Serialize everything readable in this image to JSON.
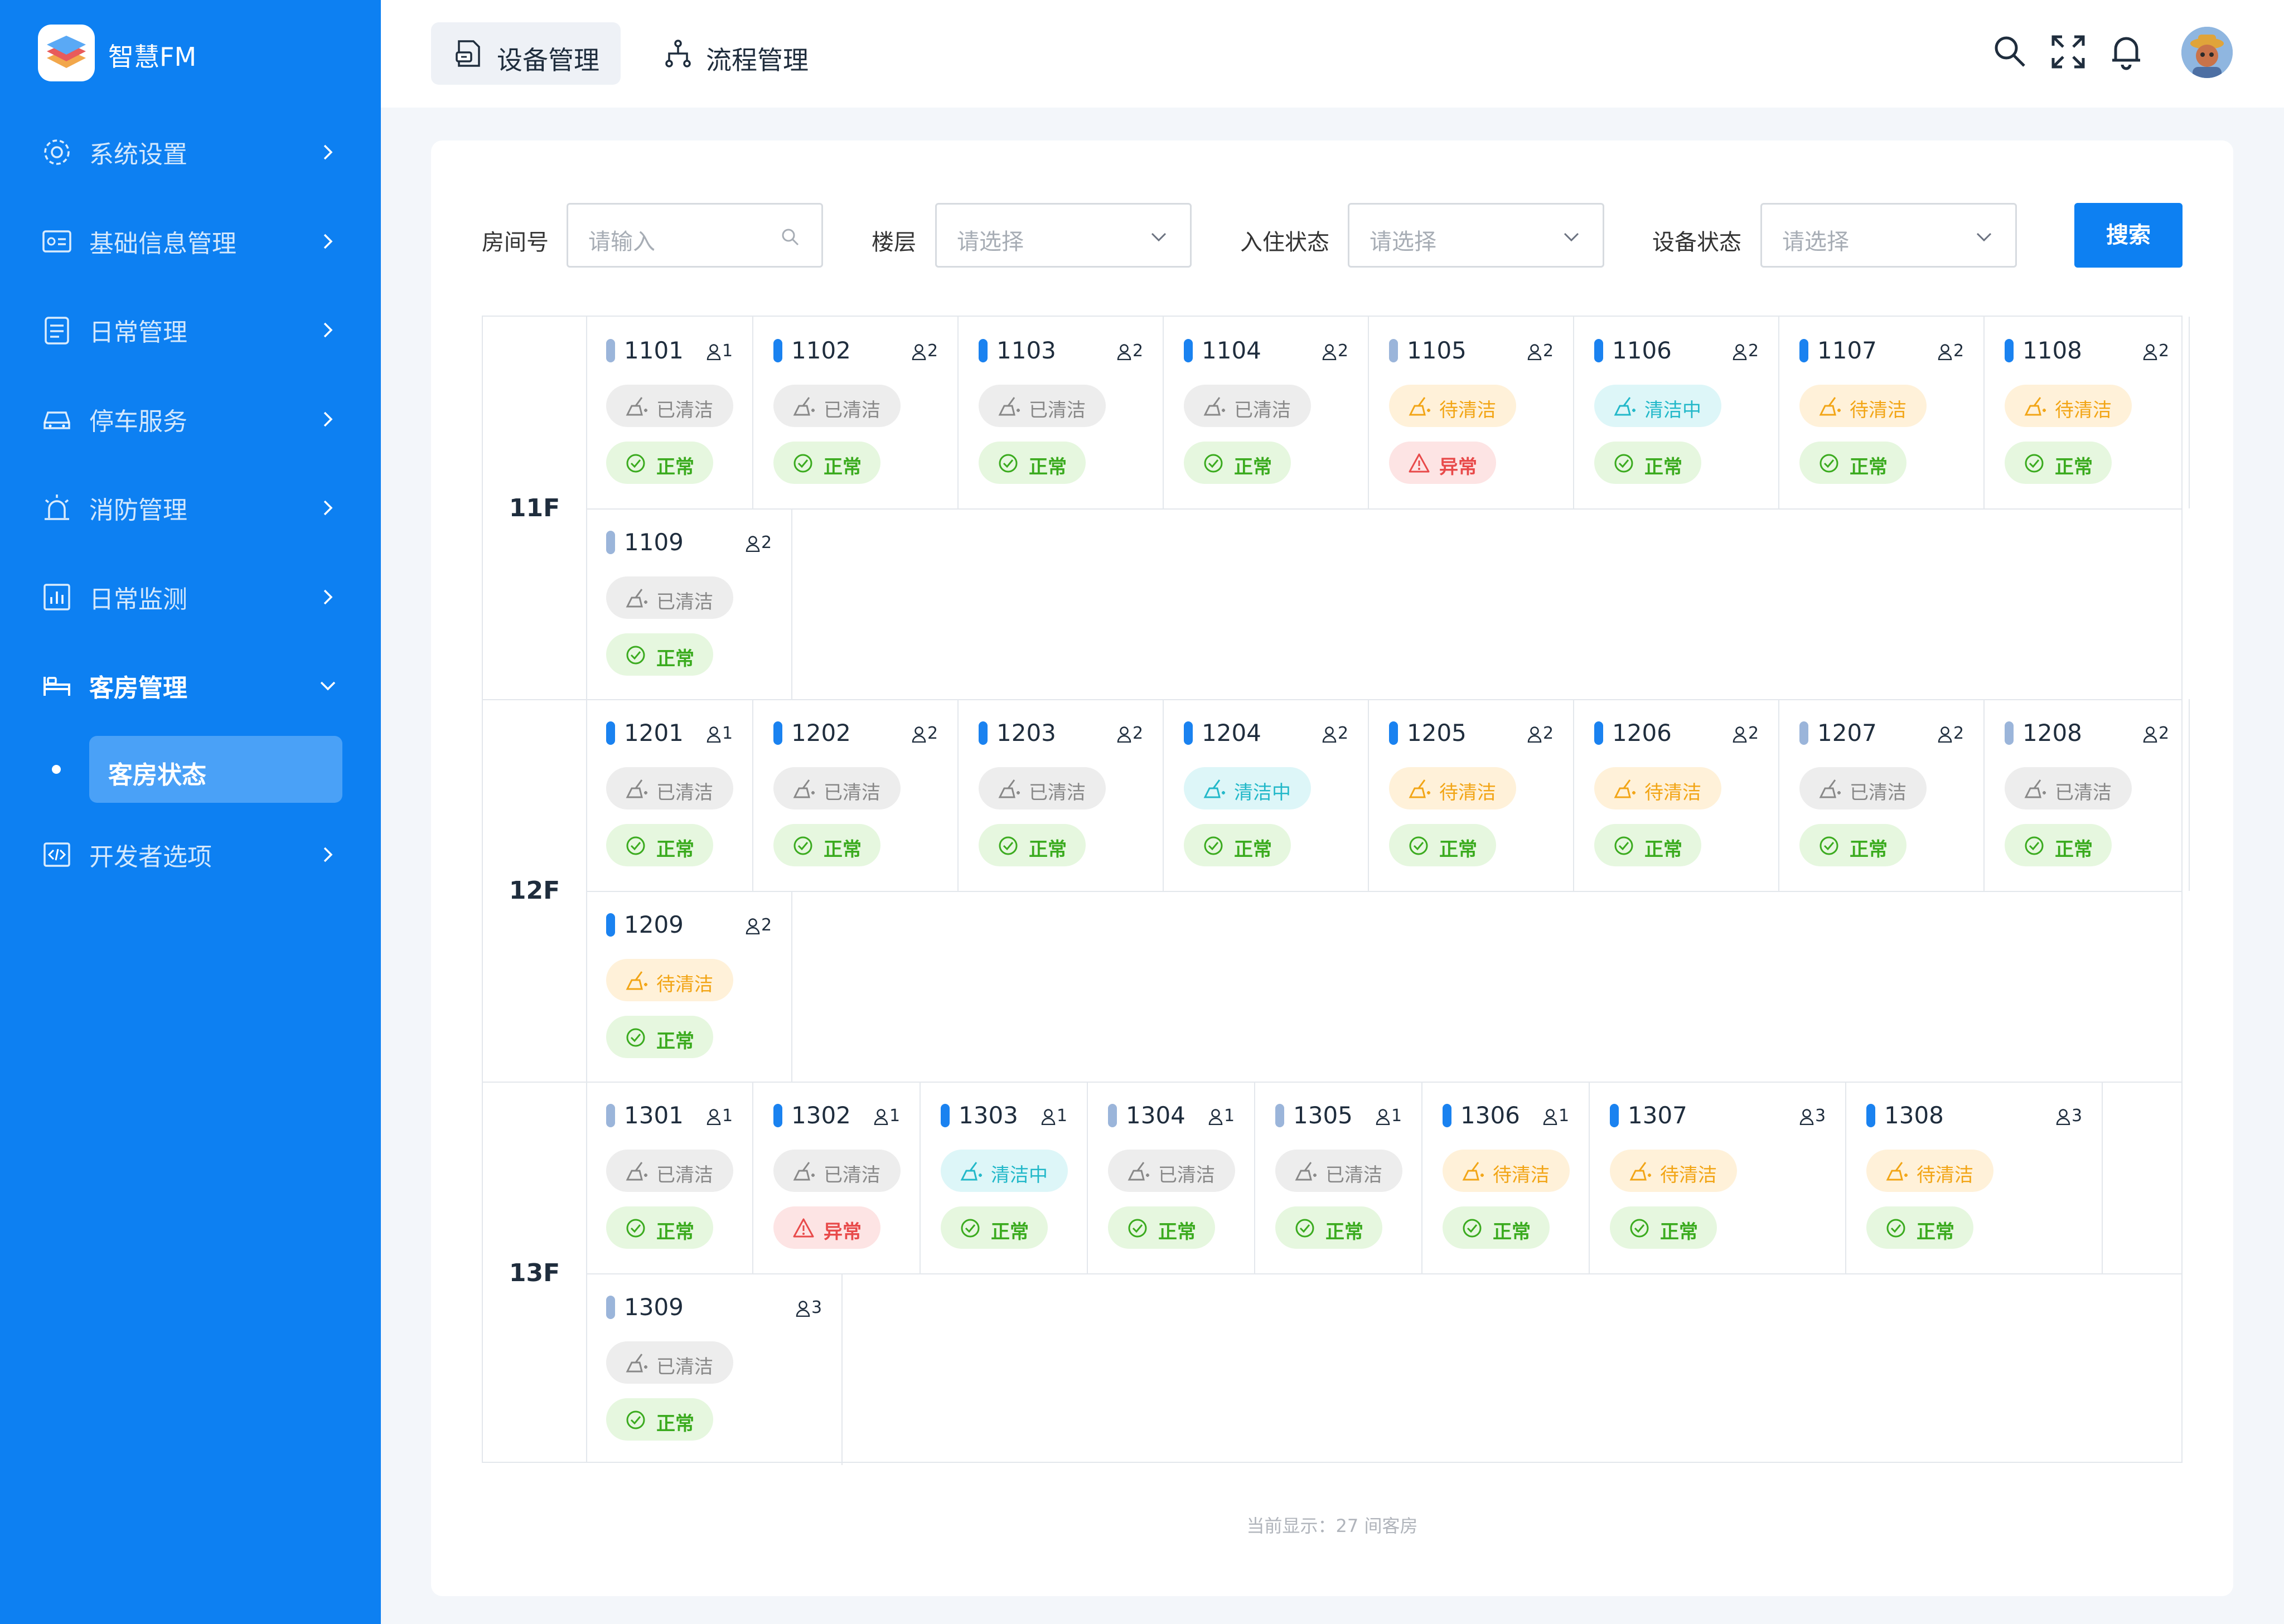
{
  "app": {
    "brand": "智慧FM"
  },
  "sidebar": {
    "items": [
      {
        "label": "系统设置",
        "icon": "gear-icon"
      },
      {
        "label": "基础信息管理",
        "icon": "id-card-icon"
      },
      {
        "label": "日常管理",
        "icon": "clipboard-icon"
      },
      {
        "label": "停车服务",
        "icon": "car-icon"
      },
      {
        "label": "消防管理",
        "icon": "alarm-icon"
      },
      {
        "label": "日常监测",
        "icon": "chart-icon"
      },
      {
        "label": "客房管理",
        "icon": "bed-icon",
        "expanded": true
      },
      {
        "label": "开发者选项",
        "icon": "code-icon"
      }
    ],
    "sub_item": "客房状态"
  },
  "header": {
    "tabs": [
      {
        "label": "设备管理",
        "active": true
      },
      {
        "label": "流程管理",
        "active": false
      }
    ],
    "icons": [
      "search-icon",
      "fullscreen-icon",
      "bell-icon",
      "avatar"
    ]
  },
  "filters": {
    "room_label": "房间号",
    "room_placeholder": "请输入",
    "floor_label": "楼层",
    "floor_placeholder": "请选择",
    "occupancy_label": "入住状态",
    "occupancy_placeholder": "请选择",
    "device_label": "设备状态",
    "device_placeholder": "请选择",
    "search_button": "搜索"
  },
  "status_labels": {
    "cleaned": "已清洁",
    "to_clean": "待清洁",
    "cleaning": "清洁中",
    "normal": "正常",
    "abnormal": "异常"
  },
  "colors": {
    "primary": "#0d80f2",
    "occupied_bar": "#1a82f0",
    "vacant_bar": "#9bb5da"
  },
  "floors": [
    {
      "name": "11F",
      "rooms": [
        {
          "no": "1101",
          "occ": 1,
          "bar": "vacant",
          "clean": "cleaned",
          "device": "normal"
        },
        {
          "no": "1102",
          "occ": 2,
          "bar": "occupied",
          "clean": "cleaned",
          "device": "normal"
        },
        {
          "no": "1103",
          "occ": 2,
          "bar": "occupied",
          "clean": "cleaned",
          "device": "normal"
        },
        {
          "no": "1104",
          "occ": 2,
          "bar": "occupied",
          "clean": "cleaned",
          "device": "normal"
        },
        {
          "no": "1105",
          "occ": 2,
          "bar": "vacant",
          "clean": "to_clean",
          "device": "abnormal"
        },
        {
          "no": "1106",
          "occ": 2,
          "bar": "occupied",
          "clean": "cleaning",
          "device": "normal"
        },
        {
          "no": "1107",
          "occ": 2,
          "bar": "occupied",
          "clean": "to_clean",
          "device": "normal"
        },
        {
          "no": "1108",
          "occ": 2,
          "bar": "occupied",
          "clean": "to_clean",
          "device": "normal"
        },
        {
          "no": "1109",
          "occ": 2,
          "bar": "vacant",
          "clean": "cleaned",
          "device": "normal"
        }
      ]
    },
    {
      "name": "12F",
      "rooms": [
        {
          "no": "1201",
          "occ": 1,
          "bar": "occupied",
          "clean": "cleaned",
          "device": "normal"
        },
        {
          "no": "1202",
          "occ": 2,
          "bar": "occupied",
          "clean": "cleaned",
          "device": "normal"
        },
        {
          "no": "1203",
          "occ": 2,
          "bar": "occupied",
          "clean": "cleaned",
          "device": "normal"
        },
        {
          "no": "1204",
          "occ": 2,
          "bar": "occupied",
          "clean": "cleaning",
          "device": "normal"
        },
        {
          "no": "1205",
          "occ": 2,
          "bar": "occupied",
          "clean": "to_clean",
          "device": "normal"
        },
        {
          "no": "1206",
          "occ": 2,
          "bar": "occupied",
          "clean": "to_clean",
          "device": "normal"
        },
        {
          "no": "1207",
          "occ": 2,
          "bar": "vacant",
          "clean": "cleaned",
          "device": "normal"
        },
        {
          "no": "1208",
          "occ": 2,
          "bar": "vacant",
          "clean": "cleaned",
          "device": "normal"
        },
        {
          "no": "1209",
          "occ": 2,
          "bar": "occupied",
          "clean": "to_clean",
          "device": "normal"
        }
      ]
    },
    {
      "name": "13F",
      "rooms": [
        {
          "no": "1301",
          "occ": 1,
          "bar": "vacant",
          "clean": "cleaned",
          "device": "normal"
        },
        {
          "no": "1302",
          "occ": 1,
          "bar": "occupied",
          "clean": "cleaned",
          "device": "abnormal"
        },
        {
          "no": "1303",
          "occ": 1,
          "bar": "occupied",
          "clean": "cleaning",
          "device": "normal"
        },
        {
          "no": "1304",
          "occ": 1,
          "bar": "vacant",
          "clean": "cleaned",
          "device": "normal"
        },
        {
          "no": "1305",
          "occ": 1,
          "bar": "vacant",
          "clean": "cleaned",
          "device": "normal"
        },
        {
          "no": "1306",
          "occ": 1,
          "bar": "occupied",
          "clean": "to_clean",
          "device": "normal"
        },
        {
          "no": "1307",
          "occ": 3,
          "bar": "occupied",
          "clean": "to_clean",
          "device": "normal"
        },
        {
          "no": "1308",
          "occ": 3,
          "bar": "occupied",
          "clean": "to_clean",
          "device": "normal"
        },
        {
          "no": "1309",
          "occ": 3,
          "bar": "vacant",
          "clean": "cleaned",
          "device": "normal"
        }
      ]
    }
  ],
  "footer": "当前显示：27 间客房"
}
